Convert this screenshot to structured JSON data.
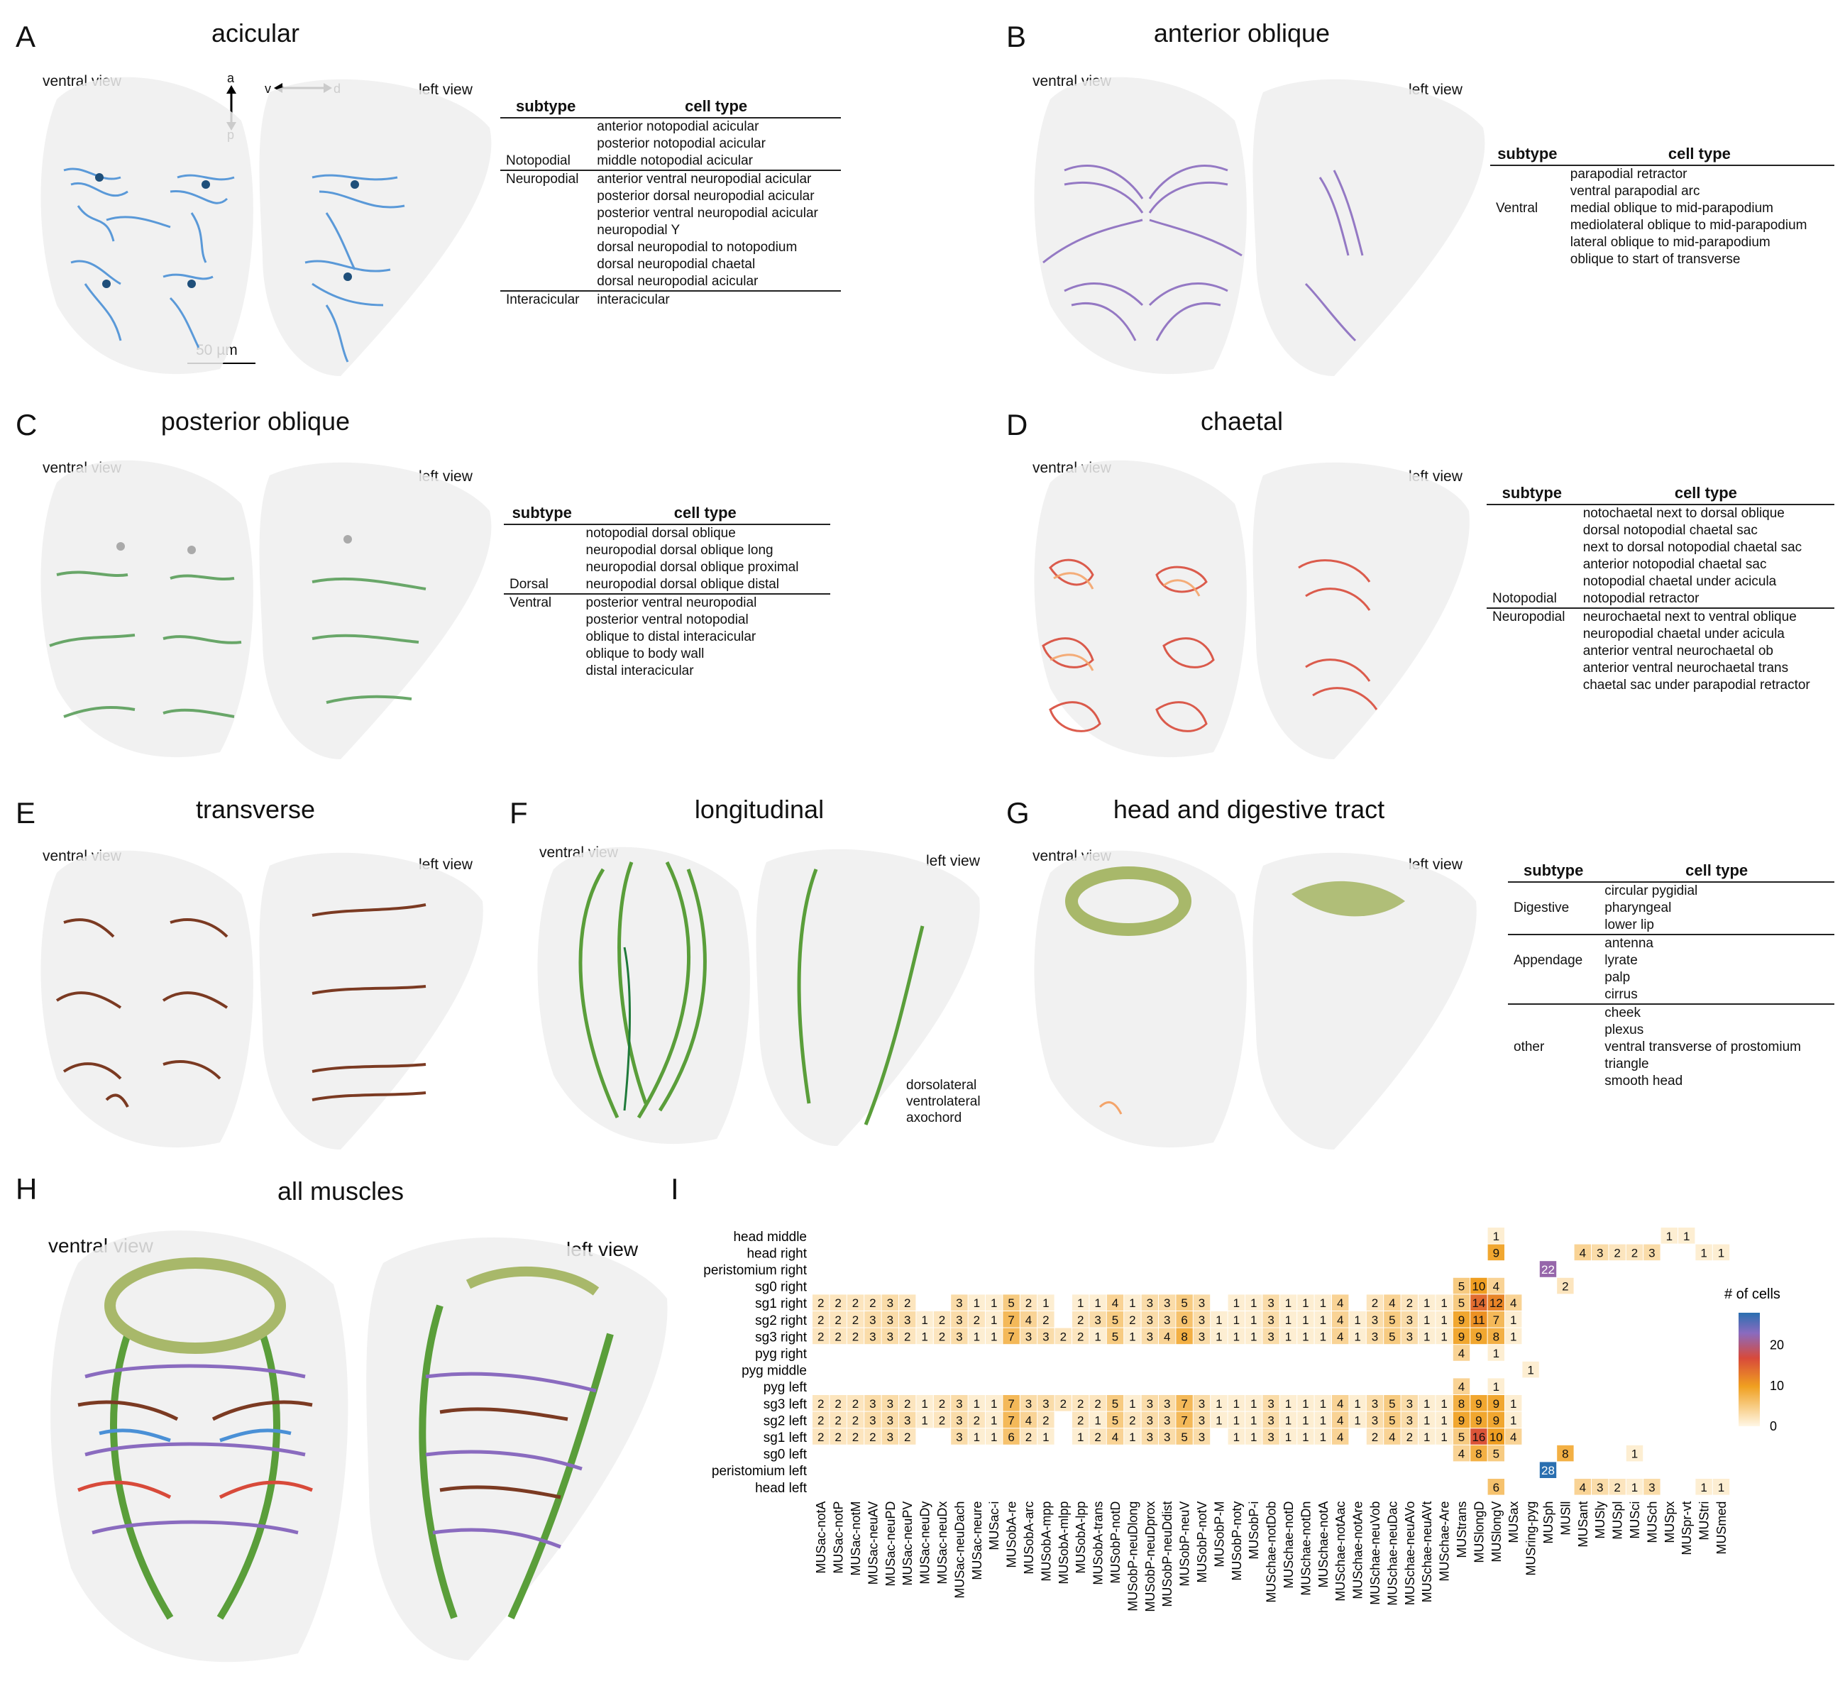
{
  "panels": {
    "A": {
      "letter": "A",
      "title": "acicular",
      "views": [
        "ventral view",
        "left view"
      ],
      "axis_ap": [
        "a",
        "p"
      ],
      "axis_vd": [
        "v",
        "d"
      ],
      "scalebar": "50 µm",
      "table": {
        "headers": [
          "subtype",
          "cell type"
        ],
        "groups": [
          {
            "subtype": "Notopodial",
            "cells": [
              "anterior notopodial acicular",
              "posterior notopodial acicular",
              "middle notopodial acicular"
            ]
          },
          {
            "subtype": "Neuropodial",
            "cells": [
              "anterior ventral neuropodial acicular",
              "posterior dorsal neuropodial acicular",
              "posterior ventral neuropodial acicular",
              "neuropodial Y",
              "dorsal neuropodial to notopodium",
              "dorsal neuropodial chaetal",
              "dorsal neuropodial acicular"
            ]
          },
          {
            "subtype": "Interacicular",
            "cells": [
              "interacicular"
            ]
          }
        ]
      }
    },
    "B": {
      "letter": "B",
      "title": "anterior oblique",
      "views": [
        "ventral view",
        "left view"
      ],
      "table": {
        "headers": [
          "subtype",
          "cell type"
        ],
        "groups": [
          {
            "subtype": "Ventral",
            "cells": [
              "parapodial retractor",
              "ventral parapodial arc",
              "medial oblique to mid-parapodium",
              "mediolateral oblique to mid-parapodium",
              "lateral oblique to mid-parapodium",
              "oblique to start of transverse"
            ]
          }
        ]
      }
    },
    "C": {
      "letter": "C",
      "title": "posterior oblique",
      "views": [
        "ventral view",
        "left view"
      ],
      "table": {
        "headers": [
          "subtype",
          "cell type"
        ],
        "groups": [
          {
            "subtype": "Dorsal",
            "cells": [
              "notopodial dorsal oblique",
              "neuropodial dorsal oblique long",
              "neuropodial dorsal oblique proximal",
              "neuropodial dorsal oblique distal"
            ]
          },
          {
            "subtype": "Ventral",
            "cells": [
              "posterior ventral neuropodial",
              "posterior ventral notopodial",
              "oblique to distal interacicular",
              "oblique to body wall",
              "distal interacicular"
            ]
          }
        ]
      }
    },
    "D": {
      "letter": "D",
      "title": "chaetal",
      "views": [
        "ventral view",
        "left view"
      ],
      "table": {
        "headers": [
          "subtype",
          "cell type"
        ],
        "groups": [
          {
            "subtype": "Notopodial",
            "cells": [
              "notochaetal next to dorsal oblique",
              "dorsal notopodial chaetal sac",
              "next to dorsal notopodial chaetal sac",
              "anterior notopodial chaetal sac",
              "notopodial chaetal under acicula",
              "notopodial retractor"
            ]
          },
          {
            "subtype": "Neuropodial",
            "cells": [
              "neurochaetal next to ventral oblique",
              "neuropodial chaetal under acicula",
              "anterior ventral neurochaetal ob",
              "anterior ventral neurochaetal trans",
              "chaetal sac under parapodial retractor"
            ]
          }
        ]
      }
    },
    "E": {
      "letter": "E",
      "title": "transverse",
      "views": [
        "ventral view",
        "left view"
      ]
    },
    "F": {
      "letter": "F",
      "title": "longitudinal",
      "views": [
        "ventral view",
        "left view"
      ],
      "legend": [
        "dorsolateral",
        "ventrolateral",
        "axochord"
      ]
    },
    "G": {
      "letter": "G",
      "title": "head and digestive tract",
      "views": [
        "ventral view",
        "left view"
      ],
      "table": {
        "headers": [
          "subtype",
          "cell type"
        ],
        "groups": [
          {
            "subtype": "Digestive",
            "cells": [
              "circular pygidial",
              "pharyngeal",
              "lower lip"
            ]
          },
          {
            "subtype": "Appendage",
            "cells": [
              "antenna",
              "lyrate",
              "palp",
              "cirrus"
            ]
          },
          {
            "subtype": "other",
            "cells": [
              "cheek",
              "plexus",
              "ventral transverse of prostomium",
              "triangle",
              "smooth head"
            ]
          }
        ]
      }
    },
    "H": {
      "letter": "H",
      "title": "all muscles",
      "views": [
        "ventral view",
        "left view"
      ]
    },
    "I": {
      "letter": "I"
    }
  },
  "chart_data": {
    "type": "heatmap",
    "legend_title": "# of cells",
    "legend_ticks": [
      0,
      10,
      20
    ],
    "scale_max": 28,
    "rows": [
      "head middle",
      "head right",
      "peristomium right",
      "sg0 right",
      "sg1 right",
      "sg2 right",
      "sg3 right",
      "pyg right",
      "pyg middle",
      "pyg left",
      "sg3 left",
      "sg2 left",
      "sg1 left",
      "sg0 left",
      "peristomium left",
      "head left"
    ],
    "columns": [
      "MUSac-notA",
      "MUSac-notP",
      "MUSac-notM",
      "MUSac-neuAV",
      "MUSac-neuPD",
      "MUSac-neuPV",
      "MUSac-neuDy",
      "MUSac-neuDx",
      "MUSac-neuDach",
      "MUSac-neure",
      "MUSac-i",
      "MUSobA-re",
      "MUSobA-arc",
      "MUSobA-mpp",
      "MUSobA-mlpp",
      "MUSobA-lpp",
      "MUSobA-trans",
      "MUSobP-notD",
      "MUSobP-neuDlong",
      "MUSobP-neuDprox",
      "MUSobP-neuDdist",
      "MUSobP-neuV",
      "MUSobP-notV",
      "MUSobP-M",
      "MUSobP-noty",
      "MUSobP-i",
      "MUSchae-notDob",
      "MUSchae-notD",
      "MUSchae-notDn",
      "MUSchae-notA",
      "MUSchae-notAac",
      "MUSchae-notAre",
      "MUSchae-neuVob",
      "MUSchae-neuDac",
      "MUSchae-neuAVo",
      "MUSchae-neuAVt",
      "MUSchae-Are",
      "MUStrans",
      "MUSlongD",
      "MUSlongV",
      "MUSax",
      "MUSring-pyg",
      "MUSph",
      "MUSll",
      "MUSant",
      "MUSly",
      "MUSpl",
      "MUSci",
      "MUSch",
      "MUSpx",
      "MUSpr-vt",
      "MUStri",
      "MUSmed"
    ],
    "values": [
      [
        0,
        0,
        0,
        0,
        0,
        0,
        0,
        0,
        0,
        0,
        0,
        0,
        0,
        0,
        0,
        0,
        0,
        0,
        0,
        0,
        0,
        0,
        0,
        0,
        0,
        0,
        0,
        0,
        0,
        0,
        0,
        0,
        0,
        0,
        0,
        0,
        0,
        0,
        0,
        1,
        0,
        0,
        0,
        0,
        0,
        0,
        0,
        0,
        0,
        1,
        1,
        0,
        0
      ],
      [
        0,
        0,
        0,
        0,
        0,
        0,
        0,
        0,
        0,
        0,
        0,
        0,
        0,
        0,
        0,
        0,
        0,
        0,
        0,
        0,
        0,
        0,
        0,
        0,
        0,
        0,
        0,
        0,
        0,
        0,
        0,
        0,
        0,
        0,
        0,
        0,
        0,
        0,
        0,
        9,
        0,
        0,
        0,
        0,
        4,
        3,
        2,
        2,
        3,
        0,
        0,
        1,
        1
      ],
      [
        0,
        0,
        0,
        0,
        0,
        0,
        0,
        0,
        0,
        0,
        0,
        0,
        0,
        0,
        0,
        0,
        0,
        0,
        0,
        0,
        0,
        0,
        0,
        0,
        0,
        0,
        0,
        0,
        0,
        0,
        0,
        0,
        0,
        0,
        0,
        0,
        0,
        0,
        0,
        0,
        0,
        0,
        22,
        0,
        0,
        0,
        0,
        0,
        0,
        0,
        0,
        0,
        0
      ],
      [
        0,
        0,
        0,
        0,
        0,
        0,
        0,
        0,
        0,
        0,
        0,
        0,
        0,
        0,
        0,
        0,
        0,
        0,
        0,
        0,
        0,
        0,
        0,
        0,
        0,
        0,
        0,
        0,
        0,
        0,
        0,
        0,
        0,
        0,
        0,
        0,
        0,
        5,
        10,
        4,
        0,
        0,
        0,
        2,
        0,
        0,
        0,
        0,
        0,
        0,
        0,
        0,
        0
      ],
      [
        2,
        2,
        2,
        2,
        3,
        2,
        0,
        0,
        3,
        1,
        1,
        5,
        2,
        1,
        0,
        1,
        1,
        4,
        1,
        3,
        3,
        5,
        3,
        0,
        1,
        1,
        3,
        1,
        1,
        1,
        4,
        0,
        2,
        4,
        2,
        1,
        1,
        5,
        14,
        12,
        4,
        0,
        0,
        0,
        0,
        0,
        0,
        0,
        0,
        0,
        0,
        0,
        0
      ],
      [
        2,
        2,
        2,
        3,
        3,
        3,
        1,
        2,
        3,
        2,
        1,
        7,
        4,
        2,
        0,
        2,
        3,
        5,
        2,
        3,
        3,
        6,
        3,
        1,
        1,
        1,
        3,
        1,
        1,
        1,
        4,
        1,
        3,
        5,
        3,
        1,
        1,
        9,
        11,
        7,
        1,
        0,
        0,
        0,
        0,
        0,
        0,
        0,
        0,
        0,
        0,
        0,
        0
      ],
      [
        2,
        2,
        2,
        3,
        3,
        2,
        1,
        2,
        3,
        1,
        1,
        7,
        3,
        3,
        2,
        2,
        1,
        5,
        1,
        3,
        4,
        8,
        3,
        1,
        1,
        1,
        3,
        1,
        1,
        1,
        4,
        1,
        3,
        5,
        3,
        1,
        1,
        9,
        9,
        8,
        1,
        0,
        0,
        0,
        0,
        0,
        0,
        0,
        0,
        0,
        0,
        0,
        0
      ],
      [
        0,
        0,
        0,
        0,
        0,
        0,
        0,
        0,
        0,
        0,
        0,
        0,
        0,
        0,
        0,
        0,
        0,
        0,
        0,
        0,
        0,
        0,
        0,
        0,
        0,
        0,
        0,
        0,
        0,
        0,
        0,
        0,
        0,
        0,
        0,
        0,
        0,
        4,
        0,
        1,
        0,
        0,
        0,
        0,
        0,
        0,
        0,
        0,
        0,
        0,
        0,
        0,
        0
      ],
      [
        0,
        0,
        0,
        0,
        0,
        0,
        0,
        0,
        0,
        0,
        0,
        0,
        0,
        0,
        0,
        0,
        0,
        0,
        0,
        0,
        0,
        0,
        0,
        0,
        0,
        0,
        0,
        0,
        0,
        0,
        0,
        0,
        0,
        0,
        0,
        0,
        0,
        0,
        0,
        0,
        0,
        1,
        0,
        0,
        0,
        0,
        0,
        0,
        0,
        0,
        0,
        0,
        0
      ],
      [
        0,
        0,
        0,
        0,
        0,
        0,
        0,
        0,
        0,
        0,
        0,
        0,
        0,
        0,
        0,
        0,
        0,
        0,
        0,
        0,
        0,
        0,
        0,
        0,
        0,
        0,
        0,
        0,
        0,
        0,
        0,
        0,
        0,
        0,
        0,
        0,
        0,
        4,
        0,
        1,
        0,
        0,
        0,
        0,
        0,
        0,
        0,
        0,
        0,
        0,
        0,
        0,
        0
      ],
      [
        2,
        2,
        2,
        3,
        3,
        2,
        1,
        2,
        3,
        1,
        1,
        7,
        3,
        3,
        2,
        2,
        2,
        5,
        1,
        3,
        3,
        7,
        3,
        1,
        1,
        1,
        3,
        1,
        1,
        1,
        4,
        1,
        3,
        5,
        3,
        1,
        1,
        8,
        9,
        9,
        1,
        0,
        0,
        0,
        0,
        0,
        0,
        0,
        0,
        0,
        0,
        0,
        0
      ],
      [
        2,
        2,
        2,
        3,
        3,
        3,
        1,
        2,
        3,
        2,
        1,
        7,
        4,
        2,
        0,
        2,
        1,
        5,
        2,
        3,
        3,
        7,
        3,
        1,
        1,
        1,
        3,
        1,
        1,
        1,
        4,
        1,
        3,
        5,
        3,
        1,
        1,
        9,
        9,
        9,
        1,
        0,
        0,
        0,
        0,
        0,
        0,
        0,
        0,
        0,
        0,
        0,
        0
      ],
      [
        2,
        2,
        2,
        2,
        3,
        2,
        0,
        0,
        3,
        1,
        1,
        6,
        2,
        1,
        0,
        1,
        2,
        4,
        1,
        3,
        3,
        5,
        3,
        0,
        1,
        1,
        3,
        1,
        1,
        1,
        4,
        0,
        2,
        4,
        2,
        1,
        1,
        5,
        16,
        10,
        4,
        0,
        0,
        0,
        0,
        0,
        0,
        0,
        0,
        0,
        0,
        0,
        0
      ],
      [
        0,
        0,
        0,
        0,
        0,
        0,
        0,
        0,
        0,
        0,
        0,
        0,
        0,
        0,
        0,
        0,
        0,
        0,
        0,
        0,
        0,
        0,
        0,
        0,
        0,
        0,
        0,
        0,
        0,
        0,
        0,
        0,
        0,
        0,
        0,
        0,
        0,
        4,
        8,
        5,
        0,
        0,
        0,
        8,
        0,
        0,
        0,
        1,
        0,
        0,
        0,
        0,
        0
      ],
      [
        0,
        0,
        0,
        0,
        0,
        0,
        0,
        0,
        0,
        0,
        0,
        0,
        0,
        0,
        0,
        0,
        0,
        0,
        0,
        0,
        0,
        0,
        0,
        0,
        0,
        0,
        0,
        0,
        0,
        0,
        0,
        0,
        0,
        0,
        0,
        0,
        0,
        0,
        0,
        0,
        0,
        0,
        28,
        0,
        0,
        0,
        0,
        0,
        0,
        0,
        0,
        0,
        0
      ],
      [
        0,
        0,
        0,
        0,
        0,
        0,
        0,
        0,
        0,
        0,
        0,
        0,
        0,
        0,
        0,
        0,
        0,
        0,
        0,
        0,
        0,
        0,
        0,
        0,
        0,
        0,
        0,
        0,
        0,
        0,
        0,
        0,
        0,
        0,
        0,
        0,
        0,
        0,
        0,
        6,
        0,
        0,
        0,
        0,
        4,
        3,
        2,
        1,
        3,
        0,
        0,
        1,
        1
      ]
    ]
  },
  "colors": {
    "acicular": "#4a90d6",
    "anterior_oblique": "#8a6bbf",
    "posterior_oblique": "#5a9e5a",
    "chaetal": "#d84a3a",
    "transverse": "#7b3a22",
    "longitudinal": "#5a9e3a",
    "head": "#a8b86a"
  }
}
